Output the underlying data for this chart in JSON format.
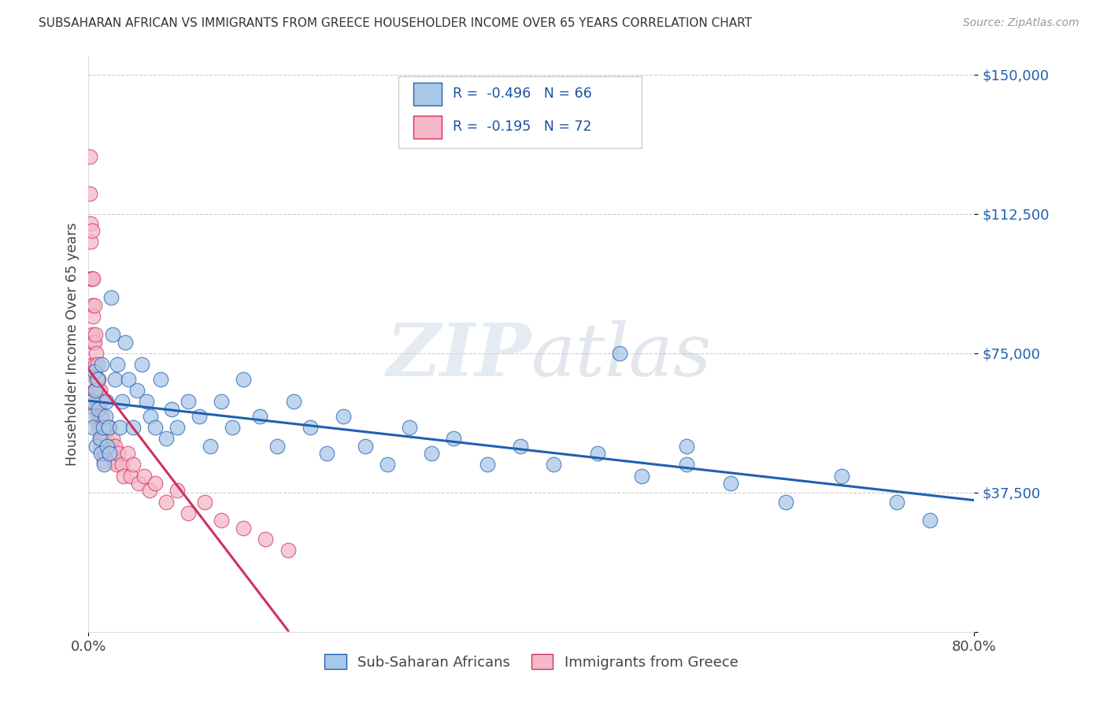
{
  "title": "SUBSAHARAN AFRICAN VS IMMIGRANTS FROM GREECE HOUSEHOLDER INCOME OVER 65 YEARS CORRELATION CHART",
  "source": "Source: ZipAtlas.com",
  "ylabel": "Householder Income Over 65 years",
  "scatter_blue_color": "#a8c8e8",
  "scatter_pink_color": "#f4b8c8",
  "line_blue_color": "#2060b0",
  "line_pink_color": "#d03060",
  "legend_blue_label": "Sub-Saharan Africans",
  "legend_pink_label": "Immigrants from Greece",
  "blue_x": [
    0.002,
    0.003,
    0.004,
    0.005,
    0.006,
    0.007,
    0.008,
    0.009,
    0.01,
    0.011,
    0.012,
    0.013,
    0.014,
    0.015,
    0.016,
    0.017,
    0.018,
    0.019,
    0.02,
    0.022,
    0.024,
    0.026,
    0.028,
    0.03,
    0.033,
    0.036,
    0.04,
    0.044,
    0.048,
    0.052,
    0.056,
    0.06,
    0.065,
    0.07,
    0.075,
    0.08,
    0.09,
    0.1,
    0.11,
    0.12,
    0.13,
    0.14,
    0.155,
    0.17,
    0.185,
    0.2,
    0.215,
    0.23,
    0.25,
    0.27,
    0.29,
    0.31,
    0.33,
    0.36,
    0.39,
    0.42,
    0.46,
    0.5,
    0.54,
    0.58,
    0.63,
    0.68,
    0.73,
    0.76,
    0.54,
    0.48
  ],
  "blue_y": [
    58000,
    62000,
    55000,
    70000,
    65000,
    50000,
    68000,
    60000,
    52000,
    48000,
    72000,
    55000,
    45000,
    58000,
    62000,
    50000,
    55000,
    48000,
    90000,
    80000,
    68000,
    72000,
    55000,
    62000,
    78000,
    68000,
    55000,
    65000,
    72000,
    62000,
    58000,
    55000,
    68000,
    52000,
    60000,
    55000,
    62000,
    58000,
    50000,
    62000,
    55000,
    68000,
    58000,
    50000,
    62000,
    55000,
    48000,
    58000,
    50000,
    45000,
    55000,
    48000,
    52000,
    45000,
    50000,
    45000,
    48000,
    42000,
    45000,
    40000,
    35000,
    42000,
    35000,
    30000,
    50000,
    75000
  ],
  "pink_x": [
    0.001,
    0.001,
    0.002,
    0.002,
    0.002,
    0.003,
    0.003,
    0.003,
    0.003,
    0.004,
    0.004,
    0.004,
    0.004,
    0.005,
    0.005,
    0.005,
    0.005,
    0.006,
    0.006,
    0.006,
    0.006,
    0.007,
    0.007,
    0.007,
    0.008,
    0.008,
    0.008,
    0.009,
    0.009,
    0.009,
    0.01,
    0.01,
    0.01,
    0.011,
    0.011,
    0.011,
    0.012,
    0.012,
    0.013,
    0.013,
    0.014,
    0.014,
    0.015,
    0.015,
    0.016,
    0.017,
    0.018,
    0.019,
    0.02,
    0.021,
    0.022,
    0.023,
    0.024,
    0.025,
    0.027,
    0.03,
    0.032,
    0.035,
    0.038,
    0.04,
    0.045,
    0.05,
    0.055,
    0.06,
    0.07,
    0.08,
    0.09,
    0.105,
    0.12,
    0.14,
    0.16,
    0.18
  ],
  "pink_y": [
    128000,
    118000,
    110000,
    105000,
    95000,
    108000,
    95000,
    88000,
    80000,
    95000,
    85000,
    78000,
    72000,
    88000,
    78000,
    70000,
    65000,
    80000,
    72000,
    65000,
    60000,
    75000,
    68000,
    62000,
    72000,
    65000,
    58000,
    68000,
    62000,
    55000,
    65000,
    58000,
    52000,
    62000,
    55000,
    50000,
    58000,
    52000,
    55000,
    48000,
    52000,
    46000,
    55000,
    48000,
    52000,
    50000,
    48000,
    55000,
    50000,
    48000,
    52000,
    46000,
    50000,
    45000,
    48000,
    45000,
    42000,
    48000,
    42000,
    45000,
    40000,
    42000,
    38000,
    40000,
    35000,
    38000,
    32000,
    35000,
    30000,
    28000,
    25000,
    22000
  ]
}
